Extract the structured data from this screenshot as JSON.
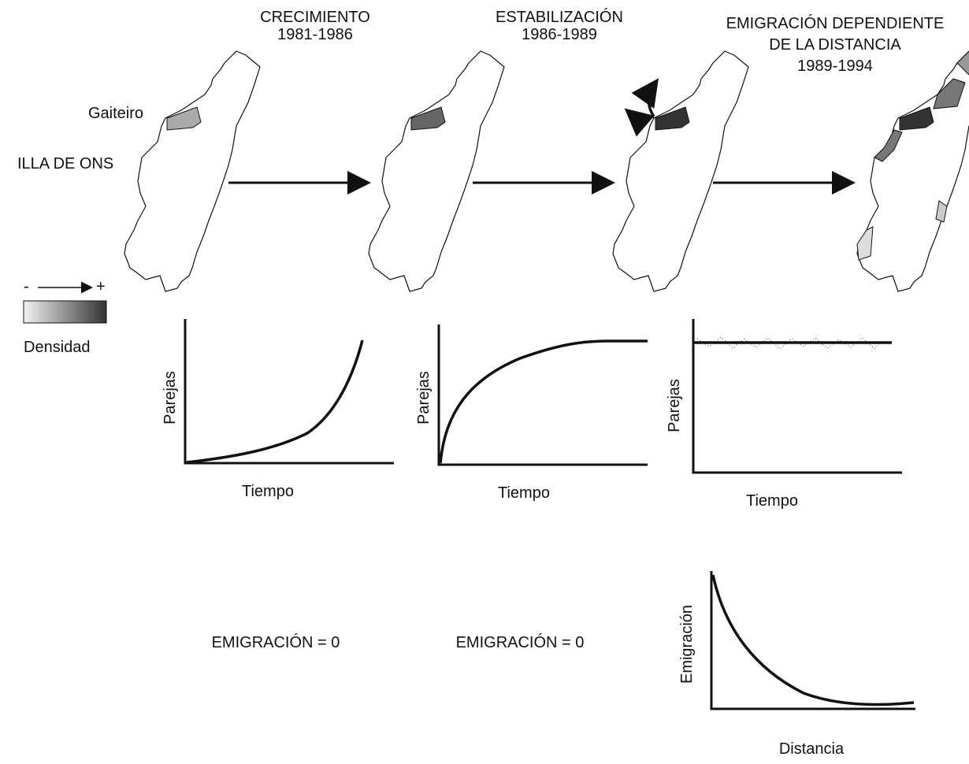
{
  "stages": [
    {
      "title": [
        "CRECIMIENTO",
        "1981-1986"
      ],
      "graph": {
        "y_label": "Parejas",
        "x_label": "Tiempo"
      },
      "emigration": "EMIGRACIÓN = 0"
    },
    {
      "title": [
        "ESTABILIZACIÓN",
        "1986-1989"
      ],
      "graph": {
        "y_label": "Parejas",
        "x_label": "Tiempo"
      },
      "emigration": "EMIGRACIÓN = 0"
    },
    {
      "title": [
        "EMIGRACIÓN DEPENDIENTE",
        "DE LA DISTANCIA",
        "1989-1994"
      ],
      "graph": {
        "y_label": "Parejas",
        "x_label": "Tiempo"
      },
      "emigration_graph": {
        "y_label": "Emigración",
        "x_label": "Distancia"
      }
    }
  ],
  "map_labels": {
    "site": "Gaiteiro",
    "island": "ILLA DE ONS"
  },
  "legend": {
    "low": "-",
    "high": "+",
    "label": "Densidad"
  }
}
